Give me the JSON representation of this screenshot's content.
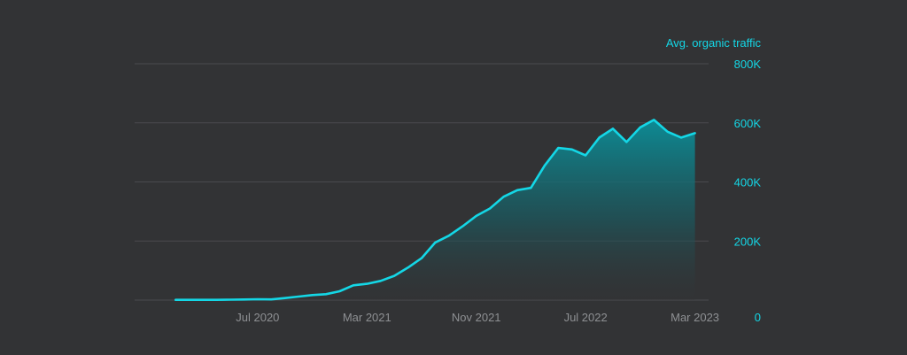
{
  "chart_data": {
    "type": "area",
    "series_title": "Avg. organic traffic",
    "x_tick_labels": [
      "Jul 2020",
      "Mar 2021",
      "Nov 2021",
      "Jul 2022",
      "Mar 2023"
    ],
    "y_tick_labels": [
      "0",
      "200K",
      "400K",
      "600K",
      "800K"
    ],
    "ylim": [
      0,
      800000
    ],
    "xlim": [
      "2019-10",
      "2023-04"
    ],
    "grid": true,
    "colors": {
      "line": "#14d7e6",
      "fill_top": "#0e7c86",
      "grid": "#4a4b4e",
      "tick": "#14d7e6",
      "axis_text": "#8e9093"
    },
    "series": [
      {
        "x": [
          "2020-01",
          "2020-02",
          "2020-03",
          "2020-04",
          "2020-05",
          "2020-06",
          "2020-07",
          "2020-08",
          "2020-09",
          "2020-10",
          "2020-11",
          "2020-12",
          "2021-01",
          "2021-02",
          "2021-03",
          "2021-04",
          "2021-05",
          "2021-06",
          "2021-07",
          "2021-08",
          "2021-09",
          "2021-10",
          "2021-11",
          "2021-12",
          "2022-01",
          "2022-02",
          "2022-03",
          "2022-04",
          "2022-05",
          "2022-06",
          "2022-07",
          "2022-08",
          "2022-09",
          "2022-10",
          "2022-11",
          "2022-12",
          "2023-01",
          "2023-02",
          "2023-03"
        ],
        "values": [
          1000,
          1000,
          1000,
          1000,
          1500,
          2000,
          3000,
          2500,
          7000,
          12000,
          17000,
          20000,
          30000,
          50000,
          55000,
          65000,
          82000,
          110000,
          142000,
          195000,
          218000,
          250000,
          285000,
          310000,
          350000,
          372000,
          380000,
          455000,
          515000,
          510000,
          490000,
          550000,
          580000,
          535000,
          585000,
          610000,
          570000,
          550000,
          565000
        ]
      }
    ]
  }
}
